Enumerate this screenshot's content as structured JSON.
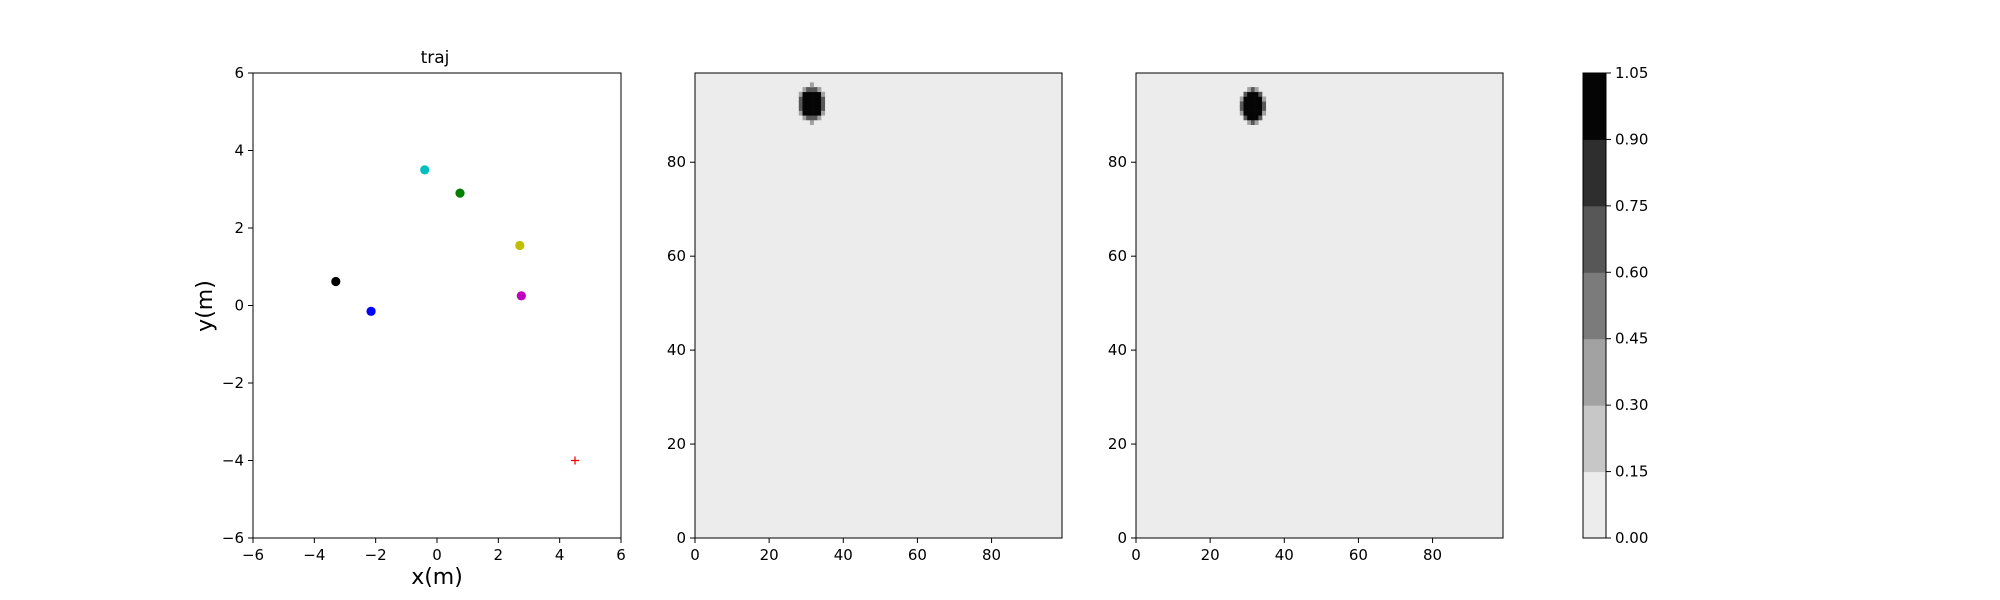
{
  "chart_data": [
    {
      "type": "scatter",
      "title": "traj",
      "xlabel": "x(m)",
      "ylabel": "y(m)",
      "xlim": [
        -6,
        6
      ],
      "ylim": [
        -6,
        6
      ],
      "xticks": [
        -6,
        -4,
        -2,
        0,
        2,
        4,
        6
      ],
      "yticks": [
        -6,
        -4,
        -2,
        0,
        2,
        4,
        6
      ],
      "grid": false,
      "points": [
        {
          "x": -0.4,
          "y": 3.5,
          "color": "#00bfbf",
          "marker": "circle"
        },
        {
          "x": 0.75,
          "y": 2.9,
          "color": "#008000",
          "marker": "circle"
        },
        {
          "x": 2.7,
          "y": 1.55,
          "color": "#bfbf00",
          "marker": "circle"
        },
        {
          "x": -3.3,
          "y": 0.62,
          "color": "#000000",
          "marker": "circle"
        },
        {
          "x": -2.15,
          "y": -0.15,
          "color": "#0000ff",
          "marker": "circle"
        },
        {
          "x": 2.75,
          "y": 0.25,
          "color": "#bf00bf",
          "marker": "circle"
        },
        {
          "x": 4.5,
          "y": -4.0,
          "color": "#ff0000",
          "marker": "plus"
        }
      ]
    },
    {
      "type": "heatmap",
      "title": "",
      "xlim": [
        0,
        99
      ],
      "ylim": [
        0,
        99
      ],
      "xticks": [
        0,
        20,
        40,
        60,
        80
      ],
      "yticks": [
        0,
        20,
        40,
        60,
        80
      ],
      "background_value": 0.05,
      "blob": {
        "cx": 31.5,
        "cy": 92.5,
        "rx": 3.2,
        "ry": 3.5,
        "value": 1.0
      }
    },
    {
      "type": "heatmap",
      "title": "",
      "xlim": [
        0,
        99
      ],
      "ylim": [
        0,
        99
      ],
      "xticks": [
        0,
        20,
        40,
        60,
        80
      ],
      "yticks": [
        0,
        20,
        40,
        60,
        80
      ],
      "background_value": 0.05,
      "blob": {
        "cx": 31.5,
        "cy": 92.0,
        "rx": 3.2,
        "ry": 3.6,
        "value": 1.0
      }
    }
  ],
  "colorbar": {
    "levels": [
      0.0,
      0.15,
      0.3,
      0.45,
      0.6,
      0.75,
      0.9,
      1.05
    ],
    "tick_labels": [
      "0.00",
      "0.15",
      "0.30",
      "0.45",
      "0.60",
      "0.75",
      "0.90",
      "1.05"
    ],
    "colors": [
      "#ececec",
      "#c7c7c7",
      "#a2a2a2",
      "#7b7b7b",
      "#575757",
      "#2e2e2e",
      "#050505"
    ]
  }
}
